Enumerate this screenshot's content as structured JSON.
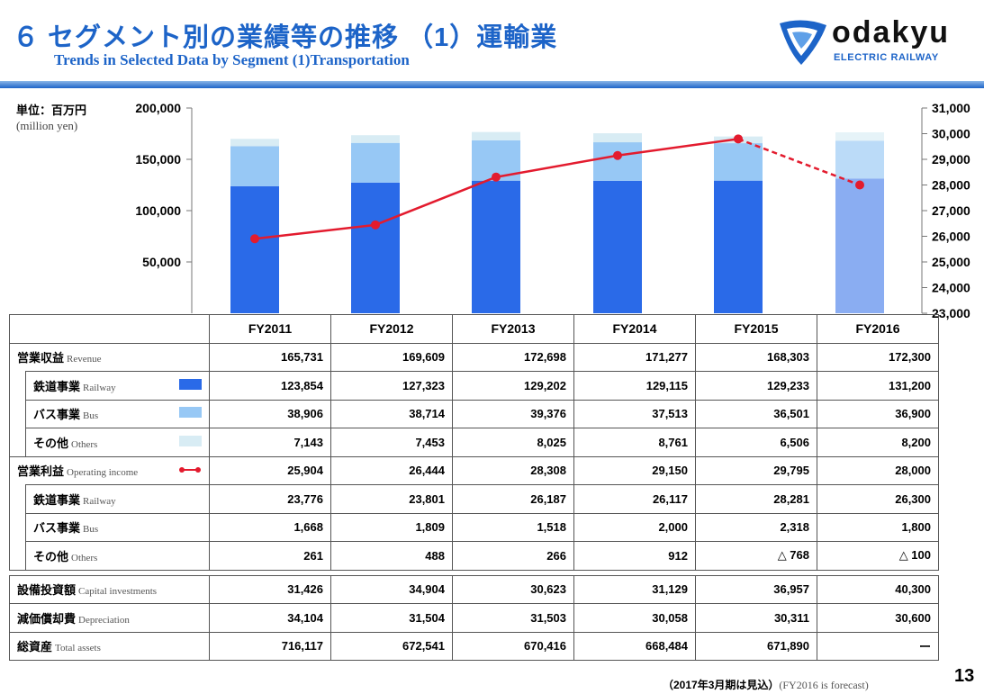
{
  "header": {
    "title_jp": "６ セグメント別の業績等の推移 （1）運輸業",
    "title_en": "Trends in Selected Data by Segment  (1)Transportation",
    "logo_name": "odakyu",
    "logo_sub": "ELECTRIC RAILWAY"
  },
  "unit": {
    "jp": "単位：百万円",
    "en": "(million yen)"
  },
  "colors": {
    "railway": "#2a6ae8",
    "bus": "#97c8f5",
    "others": "#d8ecf4",
    "operating_income": "#e31b2e",
    "title": "#1d64c8"
  },
  "chart_data": {
    "type": "bar",
    "stacked": true,
    "categories": [
      "FY2011",
      "FY2012",
      "FY2013",
      "FY2014",
      "FY2015",
      "FY2016"
    ],
    "forecast_category": "FY2016",
    "series": [
      {
        "name": "鉄道事業 Railway",
        "values": [
          123854,
          127323,
          129202,
          129115,
          129233,
          131200
        ]
      },
      {
        "name": "バス事業 Bus",
        "values": [
          38906,
          38714,
          39376,
          37513,
          36501,
          36900
        ]
      },
      {
        "name": "その他 Others",
        "values": [
          7143,
          7453,
          8025,
          8761,
          6506,
          8200
        ]
      }
    ],
    "line_series": {
      "name": "営業利益 Operating income",
      "values": [
        25904,
        26444,
        28308,
        29150,
        29795,
        28000
      ],
      "axis": "right"
    },
    "left_ylim": [
      0,
      200000
    ],
    "left_ticks": [
      "200,000",
      "150,000",
      "100,000",
      "50,000"
    ],
    "right_ylim": [
      23000,
      31000
    ],
    "right_ticks": [
      "31,000",
      "30,000",
      "29,000",
      "28,000",
      "27,000",
      "26,000",
      "25,000",
      "24,000",
      "23,000"
    ]
  },
  "table": {
    "header": [
      "FY2011",
      "FY2012",
      "FY2013",
      "FY2014",
      "FY2015",
      "FY2016"
    ],
    "revenue": {
      "jp": "営業収益",
      "en": "Revenue",
      "values": [
        "165,731",
        "169,609",
        "172,698",
        "171,277",
        "168,303",
        "172,300"
      ]
    },
    "revenue_railway": {
      "jp": "鉄道事業",
      "en": "Railway",
      "values": [
        "123,854",
        "127,323",
        "129,202",
        "129,115",
        "129,233",
        "131,200"
      ]
    },
    "revenue_bus": {
      "jp": "バス事業",
      "en": "Bus",
      "values": [
        "38,906",
        "38,714",
        "39,376",
        "37,513",
        "36,501",
        "36,900"
      ]
    },
    "revenue_others": {
      "jp": "その他",
      "en": "Others",
      "values": [
        "7,143",
        "7,453",
        "8,025",
        "8,761",
        "6,506",
        "8,200"
      ]
    },
    "op_income": {
      "jp": "営業利益",
      "en": "Operating income",
      "values": [
        "25,904",
        "26,444",
        "28,308",
        "29,150",
        "29,795",
        "28,000"
      ]
    },
    "op_railway": {
      "jp": "鉄道事業",
      "en": "Railway",
      "values": [
        "23,776",
        "23,801",
        "26,187",
        "26,117",
        "28,281",
        "26,300"
      ]
    },
    "op_bus": {
      "jp": "バス事業",
      "en": "Bus",
      "values": [
        "1,668",
        "1,809",
        "1,518",
        "2,000",
        "2,318",
        "1,800"
      ]
    },
    "op_others": {
      "jp": "その他",
      "en": "Others",
      "values": [
        "261",
        "488",
        "266",
        "912",
        "△ 768",
        "△ 100"
      ]
    },
    "capex": {
      "jp": "設備投資額",
      "en": "Capital investments",
      "values": [
        "31,426",
        "34,904",
        "30,623",
        "31,129",
        "36,957",
        "40,300"
      ]
    },
    "depreciation": {
      "jp": "減価償却費",
      "en": "Depreciation",
      "values": [
        "34,104",
        "31,504",
        "31,503",
        "30,058",
        "30,311",
        "30,600"
      ]
    },
    "total_assets": {
      "jp": "総資産",
      "en": "Total assets",
      "values": [
        "716,117",
        "672,541",
        "670,416",
        "668,484",
        "671,890",
        "ー"
      ]
    }
  },
  "footnote": {
    "jp": "（2017年3月期は見込）",
    "en": "(FY2016   is forecast)"
  },
  "page_number": "13"
}
